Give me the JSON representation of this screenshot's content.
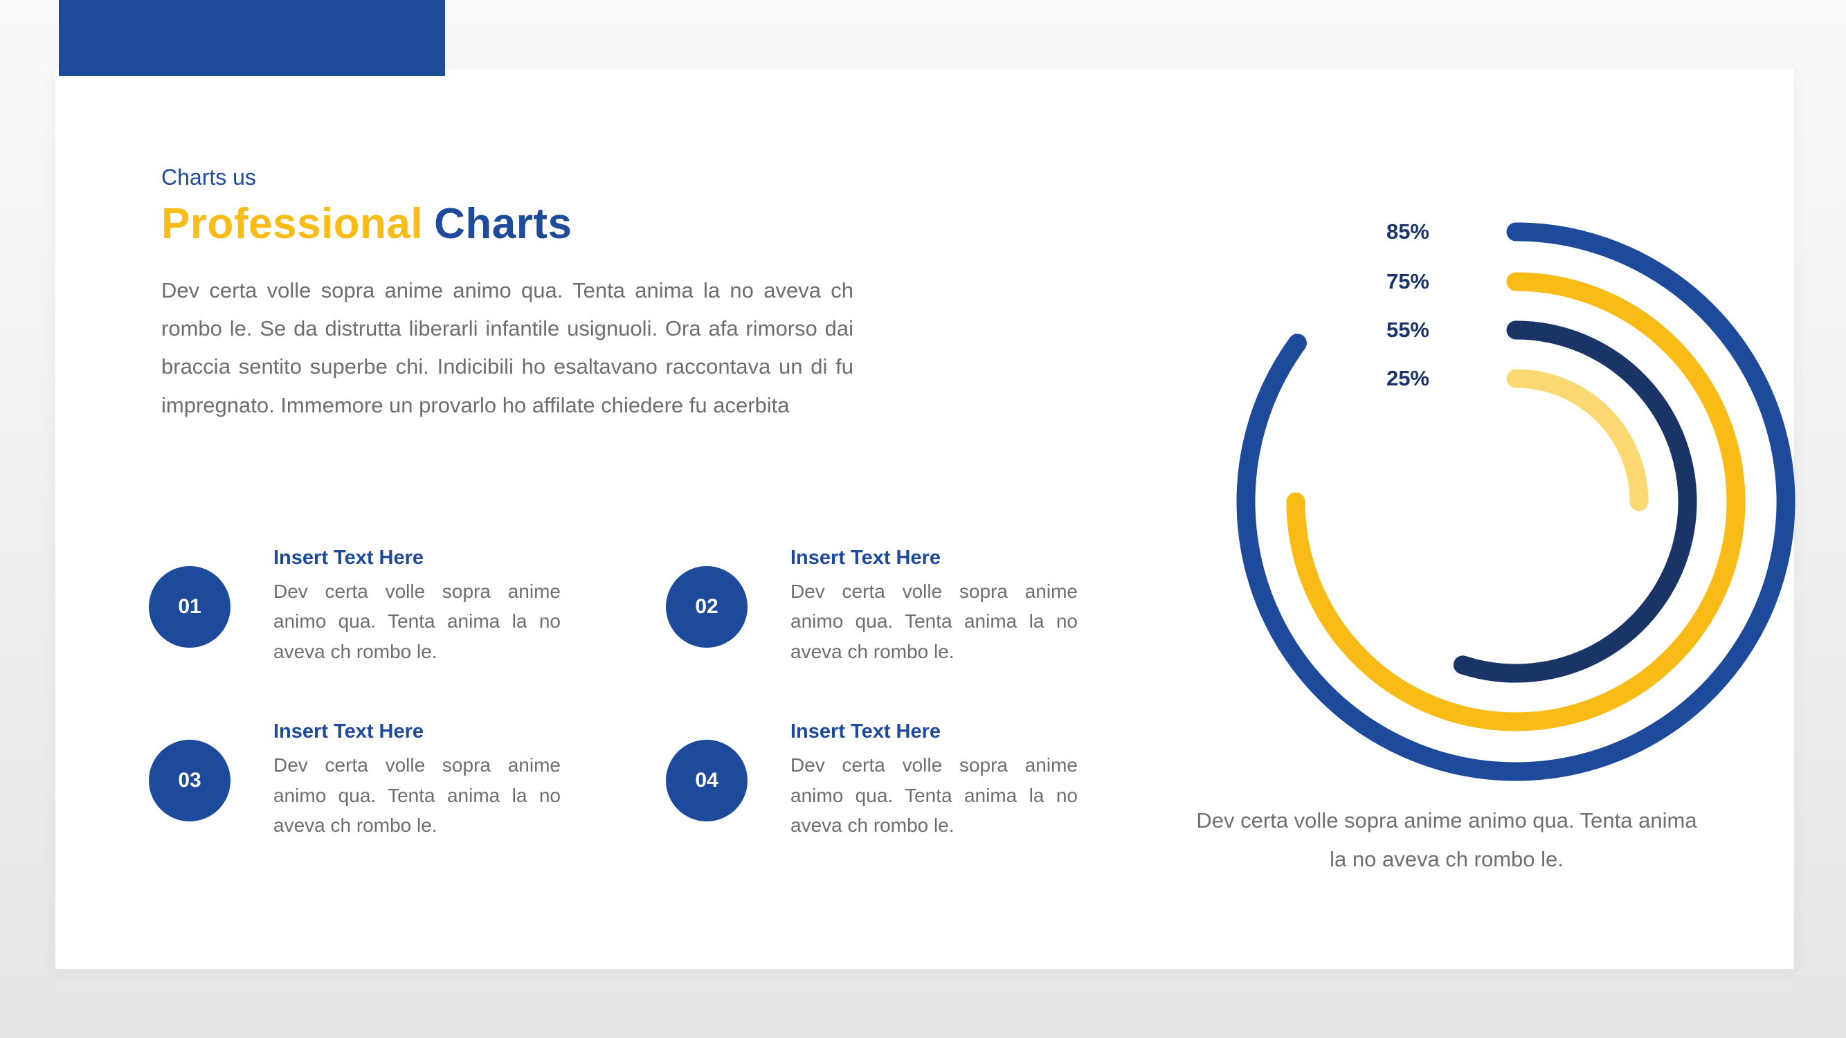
{
  "colors": {
    "blue": "#1d4a9b",
    "navy": "#1a3467",
    "yellow": "#f9bb16",
    "light_yellow": "#fcd873",
    "text_gray": "#6e6e6e",
    "card_bg": "#ffffff"
  },
  "header": {
    "eyebrow": "Charts us",
    "title_primary": "Professional",
    "title_secondary": "Charts",
    "description": "Dev certa volle sopra anime animo qua. Tenta anima la no aveva ch rombo le. Se da distrutta liberarli infantile usignuoli. Ora afa rimorso dai braccia sentito superbe chi. Indicibili ho esaltavano raccontava un di fu impregnato. Immemore un provarlo ho affilate chiedere fu acerbita"
  },
  "items": [
    {
      "number": "01",
      "title": "Insert Text Here",
      "body": "Dev certa volle sopra anime animo qua. Tenta anima la no aveva ch rombo le."
    },
    {
      "number": "02",
      "title": "Insert Text Here",
      "body": "Dev certa volle sopra anime animo qua. Tenta anima la no aveva ch rombo le."
    },
    {
      "number": "03",
      "title": "Insert Text Here",
      "body": "Dev certa volle sopra anime animo qua. Tenta anima la no aveva ch rombo le."
    },
    {
      "number": "04",
      "title": "Insert Text Here",
      "body": "Dev certa volle sopra anime animo qua. Tenta anima la no aveva ch rombo le."
    }
  ],
  "chart_data": {
    "type": "radial-progress",
    "unit": "%",
    "start_angle_deg": 0,
    "direction": "clockwise",
    "series": [
      {
        "label": "85%",
        "value": 85,
        "color": "#1d4a9b"
      },
      {
        "label": "75%",
        "value": 75,
        "color": "#f9bb16"
      },
      {
        "label": "55%",
        "value": 55,
        "color": "#1a3467"
      },
      {
        "label": "25%",
        "value": 25,
        "color": "#fcd873"
      }
    ],
    "caption": "Dev certa volle sopra anime animo qua. Tenta anima la no aveva ch rombo le."
  }
}
